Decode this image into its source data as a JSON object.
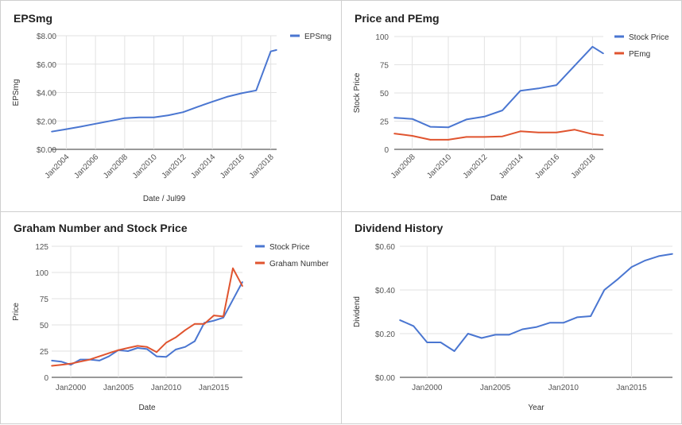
{
  "chart_data": [
    {
      "type": "line",
      "title": "EPSmg",
      "xlabel": "Date / Jul99",
      "ylabel": "EPSmg",
      "ylim": [
        0,
        8
      ],
      "yticks": [
        "$0.00",
        "$2.00",
        "$4.00",
        "$6.00",
        "$8.00"
      ],
      "xlim": [
        2003,
        2018.4
      ],
      "xticks": [
        "Jan2004",
        "Jan2006",
        "Jan2008",
        "Jan2010",
        "Jan2012",
        "Jan2014",
        "Jan2016",
        "Jan2018"
      ],
      "legend": "top-right",
      "series": [
        {
          "name": "EPSmg",
          "color": "#4a76d1",
          "x": [
            2003,
            2004,
            2005,
            2006,
            2007,
            2008,
            2009,
            2010,
            2011,
            2012,
            2013,
            2014,
            2015,
            2016,
            2017,
            2018,
            2018.4
          ],
          "y": [
            1.25,
            1.42,
            1.6,
            1.8,
            2.0,
            2.2,
            2.25,
            2.25,
            2.4,
            2.62,
            3.0,
            3.35,
            3.7,
            3.95,
            4.15,
            6.9,
            7.0
          ]
        }
      ]
    },
    {
      "type": "line",
      "title": "Price and PEmg",
      "xlabel": "Date",
      "ylabel": "Stock Price",
      "ylim": [
        0,
        100
      ],
      "yticks": [
        "0",
        "25",
        "50",
        "75",
        "100"
      ],
      "xlim": [
        2007,
        2018.6
      ],
      "xticks": [
        "Jan2008",
        "Jan2010",
        "Jan2012",
        "Jan2014",
        "Jan2016",
        "Jan2018"
      ],
      "legend": "top-right",
      "series": [
        {
          "name": "Stock Price",
          "color": "#4a76d1",
          "x": [
            2007,
            2008,
            2009,
            2010,
            2011,
            2012,
            2013,
            2014,
            2015,
            2016,
            2017,
            2018,
            2018.6
          ],
          "y": [
            28,
            27,
            20,
            19.5,
            26.5,
            29,
            34.5,
            52,
            54,
            57,
            74,
            91,
            85
          ]
        },
        {
          "name": "PEmg",
          "color": "#e0542f",
          "x": [
            2007,
            2008,
            2009,
            2010,
            2011,
            2012,
            2013,
            2014,
            2015,
            2016,
            2017,
            2018,
            2018.6
          ],
          "y": [
            14,
            12,
            8.5,
            8.5,
            11,
            11,
            11.5,
            16,
            15,
            15,
            17.5,
            13.5,
            12.5
          ]
        }
      ]
    },
    {
      "type": "line",
      "title": "Graham Number and Stock Price",
      "xlabel": "Date",
      "ylabel": "Price",
      "ylim": [
        0,
        125
      ],
      "yticks": [
        "0",
        "25",
        "50",
        "75",
        "100",
        "125"
      ],
      "xlim": [
        1998,
        2018
      ],
      "xticks": [
        "Jan2000",
        "Jan2005",
        "Jan2010",
        "Jan2015"
      ],
      "legend": "top-right",
      "series": [
        {
          "name": "Stock Price",
          "color": "#4a76d1",
          "x": [
            1998,
            1999,
            2000,
            2001,
            2002,
            2003,
            2004,
            2005,
            2006,
            2007,
            2008,
            2009,
            2010,
            2011,
            2012,
            2013,
            2014,
            2015,
            2016,
            2017,
            2018
          ],
          "y": [
            16,
            15,
            12,
            17,
            17,
            16,
            20,
            26,
            25,
            28,
            27,
            20,
            19.5,
            26.5,
            29,
            34.5,
            52,
            54,
            57,
            74,
            91
          ]
        },
        {
          "name": "Graham Number",
          "color": "#e0542f",
          "x": [
            1998,
            1999,
            2000,
            2001,
            2002,
            2003,
            2004,
            2005,
            2006,
            2007,
            2008,
            2009,
            2010,
            2011,
            2012,
            2013,
            2014,
            2015,
            2016,
            2017,
            2018
          ],
          "y": [
            11,
            12,
            13,
            15,
            17,
            20,
            23,
            26,
            28,
            30,
            29,
            24,
            33,
            38,
            45,
            51,
            51,
            59,
            58,
            104,
            87
          ]
        }
      ]
    },
    {
      "type": "line",
      "title": "Dividend History",
      "xlabel": "Year",
      "ylabel": "Dividend",
      "ylim": [
        0,
        0.6
      ],
      "yticks": [
        "$0.00",
        "$0.20",
        "$0.40",
        "$0.60"
      ],
      "xlim": [
        1998,
        2018
      ],
      "xticks": [
        "Jan2000",
        "Jan2005",
        "Jan2010",
        "Jan2015"
      ],
      "legend": "none",
      "series": [
        {
          "name": "",
          "color": "#4a76d1",
          "x": [
            1998,
            1999,
            2000,
            2001,
            2002,
            2003,
            2004,
            2005,
            2006,
            2007,
            2008,
            2009,
            2010,
            2011,
            2012,
            2013,
            2014,
            2015,
            2016,
            2017,
            2018
          ],
          "y": [
            0.262,
            0.235,
            0.16,
            0.16,
            0.12,
            0.2,
            0.18,
            0.195,
            0.195,
            0.22,
            0.23,
            0.25,
            0.25,
            0.275,
            0.28,
            0.4,
            0.45,
            0.505,
            0.535,
            0.555,
            0.565
          ]
        }
      ]
    }
  ]
}
